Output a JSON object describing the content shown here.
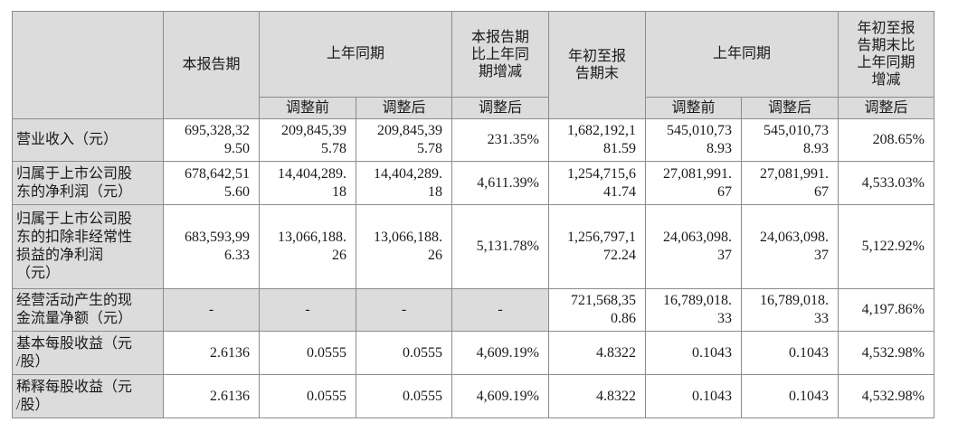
{
  "header": {
    "current_period": "本报告期",
    "prior_period_group": "上年同期",
    "current_vs_prior": "本报告期\n比上年同\n期增减",
    "ytd": "年初至报\n告期末",
    "prior_ytd_group": "上年同期",
    "ytd_vs_prior": "年初至报\n告期末比\n上年同期\n增减",
    "before_adj": "调整前",
    "after_adj": "调整后",
    "after_adj_2": "调整后",
    "before_adj_2": "调整前",
    "after_adj_3": "调整后",
    "after_adj_4": "调整后"
  },
  "rows": [
    {
      "label": "营业收入（元）",
      "current": "695,328,32\n9.50",
      "prior_before": "209,845,39\n5.78",
      "prior_after": "209,845,39\n5.78",
      "change": "231.35%",
      "ytd": "1,682,192,1\n81.59",
      "ytd_prior_before": "545,010,73\n8.93",
      "ytd_prior_after": "545,010,73\n8.93",
      "ytd_change": "208.65%"
    },
    {
      "label": "归属于上市公司股\n东的净利润（元）",
      "current": "678,642,51\n5.60",
      "prior_before": "14,404,289.\n18",
      "prior_after": "14,404,289.\n18",
      "change": "4,611.39%",
      "ytd": "1,254,715,6\n41.74",
      "ytd_prior_before": "27,081,991.\n67",
      "ytd_prior_after": "27,081,991.\n67",
      "ytd_change": "4,533.03%"
    },
    {
      "label": "归属于上市公司股\n东的扣除非经常性\n损益的净利润\n（元）",
      "current": "683,593,99\n6.33",
      "prior_before": "13,066,188.\n26",
      "prior_after": "13,066,188.\n26",
      "change": "5,131.78%",
      "ytd": "1,256,797,1\n72.24",
      "ytd_prior_before": "24,063,098.\n37",
      "ytd_prior_after": "24,063,098.\n37",
      "ytd_change": "5,122.92%"
    },
    {
      "label": "经营活动产生的现\n金流量净额（元）",
      "current": "-",
      "prior_before": "-",
      "prior_after": "-",
      "change": "-",
      "ytd": "721,568,35\n0.86",
      "ytd_prior_before": "16,789,018.\n33",
      "ytd_prior_after": "16,789,018.\n33",
      "ytd_change": "4,197.86%"
    },
    {
      "label": "基本每股收益（元\n/股）",
      "current": "2.6136",
      "prior_before": "0.0555",
      "prior_after": "0.0555",
      "change": "4,609.19%",
      "ytd": "4.8322",
      "ytd_prior_before": "0.1043",
      "ytd_prior_after": "0.1043",
      "ytd_change": "4,532.98%"
    },
    {
      "label": "稀释每股收益（元\n/股）",
      "current": "2.6136",
      "prior_before": "0.0555",
      "prior_after": "0.0555",
      "change": "4,609.19%",
      "ytd": "4.8322",
      "ytd_prior_before": "0.1043",
      "ytd_prior_after": "0.1043",
      "ytd_change": "4,532.98%"
    }
  ],
  "colors": {
    "header_shade": "#dcdcdc",
    "border": "#8c8c8c"
  }
}
